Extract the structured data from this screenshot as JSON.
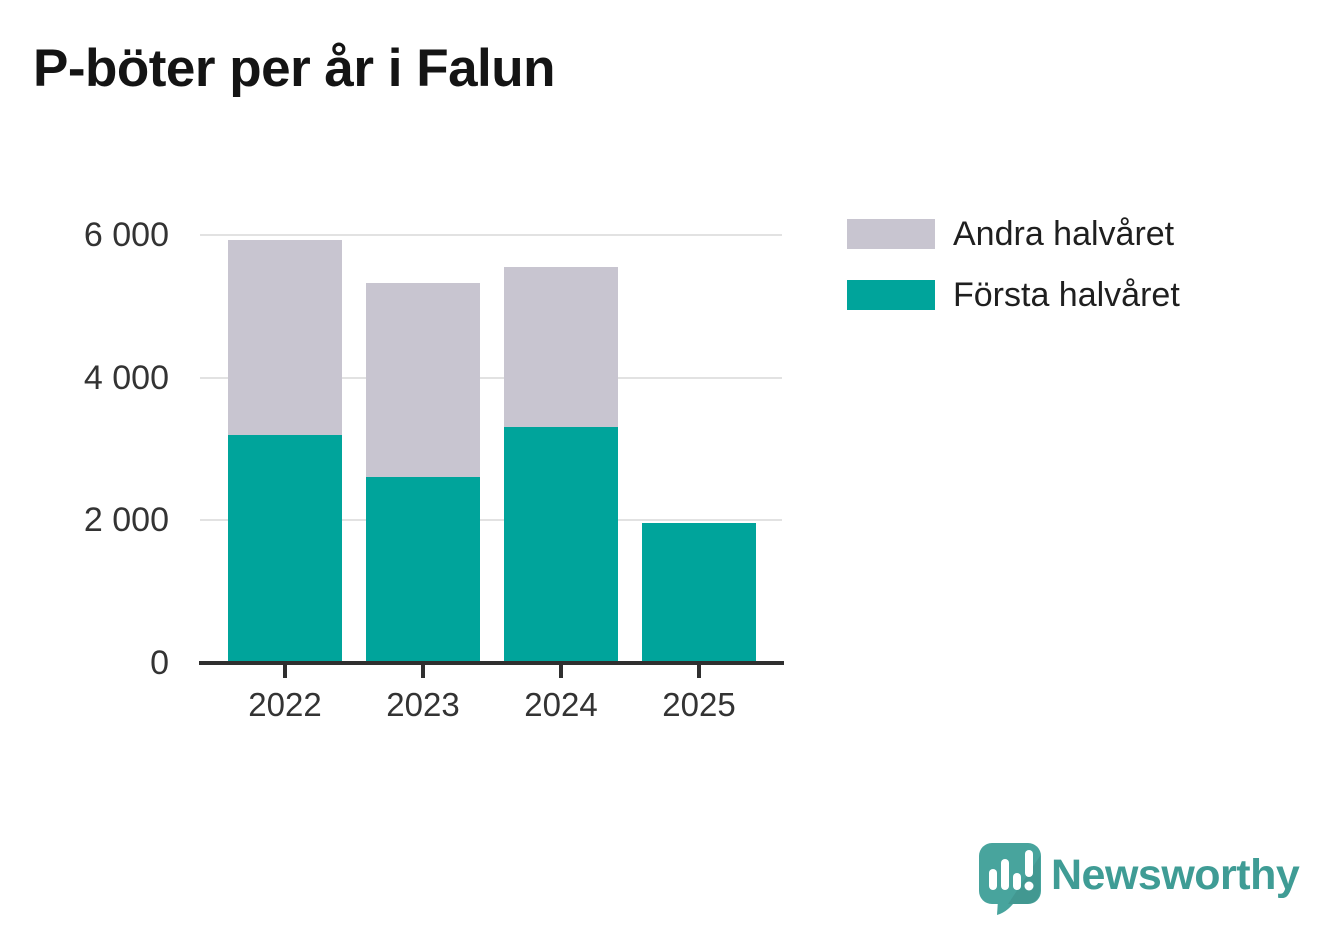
{
  "title": "P-böter per år i Falun",
  "chart_data": {
    "type": "bar",
    "stacked": true,
    "title": "P-böter per år i Falun",
    "categories": [
      "2022",
      "2023",
      "2024",
      "2025"
    ],
    "series": [
      {
        "name": "Första halvåret",
        "color": "#00a49b",
        "values": [
          3200,
          2610,
          3310,
          1960
        ]
      },
      {
        "name": "Andra halvåret",
        "color": "#c8c5d0",
        "values": [
          2730,
          2720,
          2240,
          0
        ]
      }
    ],
    "xlabel": "",
    "ylabel": "",
    "ylim": [
      0,
      6000
    ],
    "yticks": [
      {
        "value": 0,
        "label": "0"
      },
      {
        "value": 2000,
        "label": "2 000"
      },
      {
        "value": 4000,
        "label": "4 000"
      },
      {
        "value": 6000,
        "label": "6 000"
      }
    ],
    "grid": true,
    "legend_position": "top-right",
    "legend": [
      {
        "label": "Andra halvåret",
        "color": "#c8c5d0"
      },
      {
        "label": "Första halvåret",
        "color": "#00a49b"
      }
    ]
  },
  "branding": {
    "wordmark": "Newsworthy",
    "logo_icon": "speech-bubble-bar-chart-icon",
    "brand_color": "#3f9c95"
  },
  "colors": {
    "first_half": "#00a49b",
    "second_half": "#c8c5d0",
    "grid": "#e2e2e2",
    "axis": "#2f2f2f",
    "tick_text": "#333333",
    "title_text": "#141414",
    "background": "#ffffff"
  }
}
